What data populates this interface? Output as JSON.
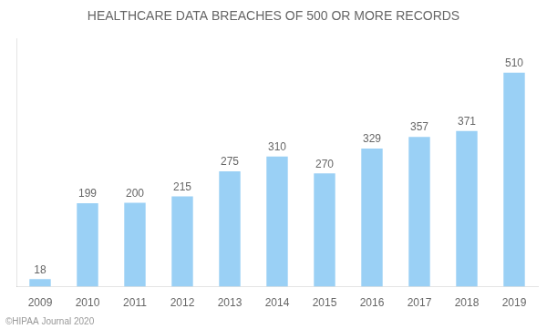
{
  "chart_data": {
    "type": "bar",
    "title": "HEALTHCARE DATA BREACHES OF 500 OR MORE RECORDS",
    "categories": [
      "2009",
      "2010",
      "2011",
      "2012",
      "2013",
      "2014",
      "2015",
      "2016",
      "2017",
      "2018",
      "2019"
    ],
    "values": [
      18,
      199,
      200,
      215,
      275,
      310,
      270,
      329,
      357,
      371,
      510
    ],
    "ylim": [
      0,
      590
    ],
    "grid": false,
    "data_labels": true,
    "tick_labels": "x",
    "annotations": [
      "©HIPAA Journal 2020"
    ]
  }
}
